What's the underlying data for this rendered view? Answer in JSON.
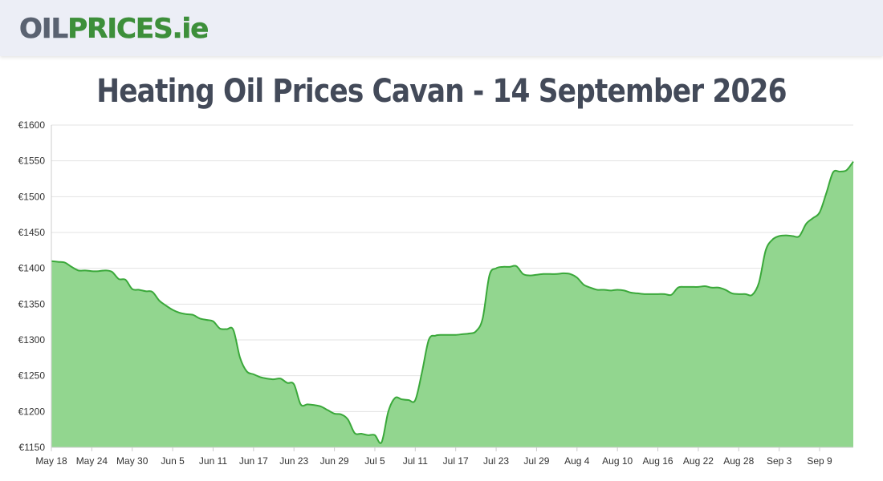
{
  "header": {
    "logo_part1": "OIL",
    "logo_part2": "PRICES",
    "logo_part3": ".ie"
  },
  "title": "Heating Oil Prices Cavan - 14 September 2026",
  "colors": {
    "line": "#3aa83a",
    "fill": "#92d68f",
    "grid": "#e3e3e3",
    "logo_gray": "#5a6271",
    "logo_green": "#3d8f3a",
    "title": "#434a59"
  },
  "chart_data": {
    "type": "area",
    "title": "Heating Oil Prices Cavan - 14 September 2026",
    "xlabel": "",
    "ylabel": "",
    "ylim": [
      1150,
      1600
    ],
    "yticks": [
      1150,
      1200,
      1250,
      1300,
      1350,
      1400,
      1450,
      1500,
      1550,
      1600
    ],
    "ytick_labels": [
      "€1150",
      "€1200",
      "€1250",
      "€1300",
      "€1350",
      "€1400",
      "€1450",
      "€1500",
      "€1550",
      "€1600"
    ],
    "xtick_labels": [
      "May 18",
      "May 24",
      "May 30",
      "Jun 5",
      "Jun 11",
      "Jun 17",
      "Jun 23",
      "Jun 29",
      "Jul 5",
      "Jul 11",
      "Jul 17",
      "Jul 23",
      "Jul 29",
      "Aug 4",
      "Aug 10",
      "Aug 16",
      "Aug 22",
      "Aug 28",
      "Sep 3",
      "Sep 9"
    ],
    "x_start": "May 18",
    "x_end": "Sep 14",
    "grid": true,
    "legend": "none",
    "points": [
      [
        "May 18",
        1410
      ],
      [
        "May 19",
        1409
      ],
      [
        "May 20",
        1408
      ],
      [
        "May 21",
        1402
      ],
      [
        "May 22",
        1397
      ],
      [
        "May 23",
        1397
      ],
      [
        "May 24",
        1396
      ],
      [
        "May 25",
        1396
      ],
      [
        "May 26",
        1397
      ],
      [
        "May 27",
        1395
      ],
      [
        "May 28",
        1385
      ],
      [
        "May 29",
        1384
      ],
      [
        "May 30",
        1371
      ],
      [
        "May 31",
        1370
      ],
      [
        "Jun 1",
        1368
      ],
      [
        "Jun 2",
        1367
      ],
      [
        "Jun 3",
        1355
      ],
      [
        "Jun 4",
        1348
      ],
      [
        "Jun 5",
        1342
      ],
      [
        "Jun 6",
        1338
      ],
      [
        "Jun 7",
        1336
      ],
      [
        "Jun 8",
        1335
      ],
      [
        "Jun 9",
        1330
      ],
      [
        "Jun 10",
        1328
      ],
      [
        "Jun 11",
        1326
      ],
      [
        "Jun 12",
        1316
      ],
      [
        "Jun 13",
        1315
      ],
      [
        "Jun 14",
        1314
      ],
      [
        "Jun 15",
        1275
      ],
      [
        "Jun 16",
        1256
      ],
      [
        "Jun 17",
        1252
      ],
      [
        "Jun 18",
        1248
      ],
      [
        "Jun 19",
        1246
      ],
      [
        "Jun 20",
        1245
      ],
      [
        "Jun 21",
        1246
      ],
      [
        "Jun 22",
        1240
      ],
      [
        "Jun 23",
        1238
      ],
      [
        "Jun 24",
        1210
      ],
      [
        "Jun 25",
        1210
      ],
      [
        "Jun 26",
        1209
      ],
      [
        "Jun 27",
        1207
      ],
      [
        "Jun 28",
        1202
      ],
      [
        "Jun 29",
        1197
      ],
      [
        "Jun 30",
        1196
      ],
      [
        "Jul 1",
        1189
      ],
      [
        "Jul 2",
        1170
      ],
      [
        "Jul 3",
        1169
      ],
      [
        "Jul 4",
        1167
      ],
      [
        "Jul 5",
        1167
      ],
      [
        "Jul 6",
        1157
      ],
      [
        "Jul 7",
        1200
      ],
      [
        "Jul 8",
        1219
      ],
      [
        "Jul 9",
        1217
      ],
      [
        "Jul 10",
        1216
      ],
      [
        "Jul 11",
        1216
      ],
      [
        "Jul 12",
        1255
      ],
      [
        "Jul 13",
        1300
      ],
      [
        "Jul 14",
        1306
      ],
      [
        "Jul 15",
        1307
      ],
      [
        "Jul 16",
        1307
      ],
      [
        "Jul 17",
        1307
      ],
      [
        "Jul 18",
        1308
      ],
      [
        "Jul 19",
        1309
      ],
      [
        "Jul 20",
        1312
      ],
      [
        "Jul 21",
        1330
      ],
      [
        "Jul 22",
        1390
      ],
      [
        "Jul 23",
        1400
      ],
      [
        "Jul 24",
        1402
      ],
      [
        "Jul 25",
        1402
      ],
      [
        "Jul 26",
        1403
      ],
      [
        "Jul 27",
        1392
      ],
      [
        "Jul 28",
        1390
      ],
      [
        "Jul 29",
        1391
      ],
      [
        "Jul 30",
        1392
      ],
      [
        "Jul 31",
        1392
      ],
      [
        "Aug 1",
        1392
      ],
      [
        "Aug 2",
        1393
      ],
      [
        "Aug 3",
        1392
      ],
      [
        "Aug 4",
        1387
      ],
      [
        "Aug 5",
        1377
      ],
      [
        "Aug 6",
        1373
      ],
      [
        "Aug 7",
        1370
      ],
      [
        "Aug 8",
        1370
      ],
      [
        "Aug 9",
        1369
      ],
      [
        "Aug 10",
        1370
      ],
      [
        "Aug 11",
        1369
      ],
      [
        "Aug 12",
        1366
      ],
      [
        "Aug 13",
        1365
      ],
      [
        "Aug 14",
        1364
      ],
      [
        "Aug 15",
        1364
      ],
      [
        "Aug 16",
        1364
      ],
      [
        "Aug 17",
        1364
      ],
      [
        "Aug 18",
        1363
      ],
      [
        "Aug 19",
        1373
      ],
      [
        "Aug 20",
        1374
      ],
      [
        "Aug 21",
        1374
      ],
      [
        "Aug 22",
        1374
      ],
      [
        "Aug 23",
        1375
      ],
      [
        "Aug 24",
        1373
      ],
      [
        "Aug 25",
        1373
      ],
      [
        "Aug 26",
        1370
      ],
      [
        "Aug 27",
        1365
      ],
      [
        "Aug 28",
        1364
      ],
      [
        "Aug 29",
        1364
      ],
      [
        "Aug 30",
        1363
      ],
      [
        "Aug 31",
        1380
      ],
      [
        "Sep 1",
        1425
      ],
      [
        "Sep 2",
        1440
      ],
      [
        "Sep 3",
        1445
      ],
      [
        "Sep 4",
        1446
      ],
      [
        "Sep 5",
        1445
      ],
      [
        "Sep 6",
        1445
      ],
      [
        "Sep 7",
        1462
      ],
      [
        "Sep 8",
        1470
      ],
      [
        "Sep 9",
        1478
      ],
      [
        "Sep 10",
        1505
      ],
      [
        "Sep 11",
        1534
      ],
      [
        "Sep 12",
        1535
      ],
      [
        "Sep 13",
        1537
      ],
      [
        "Sep 14",
        1549
      ]
    ]
  }
}
